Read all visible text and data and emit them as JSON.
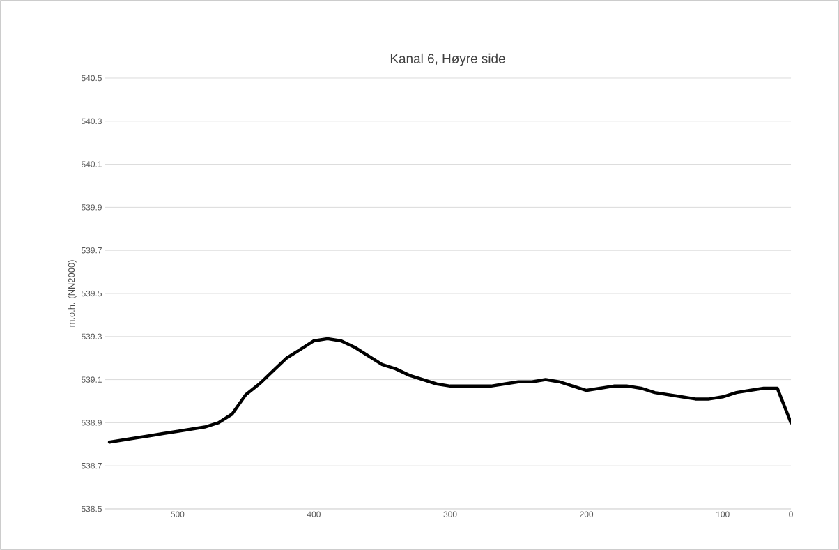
{
  "chart_data": {
    "type": "line",
    "title": "Kanal 6, Høyre side",
    "ylabel": "m.o.h. (NN2000)",
    "categories": [
      null,
      null,
      null,
      null,
      null,
      "500",
      null,
      null,
      null,
      null,
      null,
      null,
      null,
      null,
      null,
      "400",
      null,
      null,
      null,
      null,
      null,
      null,
      null,
      null,
      null,
      "300",
      null,
      null,
      null,
      null,
      null,
      null,
      null,
      null,
      null,
      "200",
      null,
      null,
      null,
      null,
      null,
      null,
      null,
      null,
      null,
      "100",
      null,
      null,
      null,
      null,
      "0"
    ],
    "series": [
      {
        "color": "#000000",
        "values": [
          538.81,
          538.82,
          538.83,
          538.84,
          538.85,
          538.86,
          538.87,
          538.88,
          538.9,
          538.94,
          539.03,
          539.08,
          539.14,
          539.2,
          539.24,
          539.28,
          539.29,
          539.28,
          539.25,
          539.21,
          539.17,
          539.15,
          539.12,
          539.1,
          539.08,
          539.07,
          539.07,
          539.07,
          539.07,
          539.08,
          539.09,
          539.09,
          539.1,
          539.09,
          539.07,
          539.05,
          539.06,
          539.07,
          539.07,
          539.06,
          539.04,
          539.03,
          539.02,
          539.01,
          539.01,
          539.02,
          539.04,
          539.05,
          539.06,
          539.06,
          538.9
        ]
      }
    ],
    "ylim": [
      538.5,
      540.5
    ],
    "yticks": [
      538.5,
      538.7,
      538.9,
      539.1,
      539.3,
      539.5,
      539.7,
      539.9,
      540.1,
      540.3,
      540.5
    ],
    "grid": "y",
    "line_style": "solid",
    "marker": "none"
  }
}
